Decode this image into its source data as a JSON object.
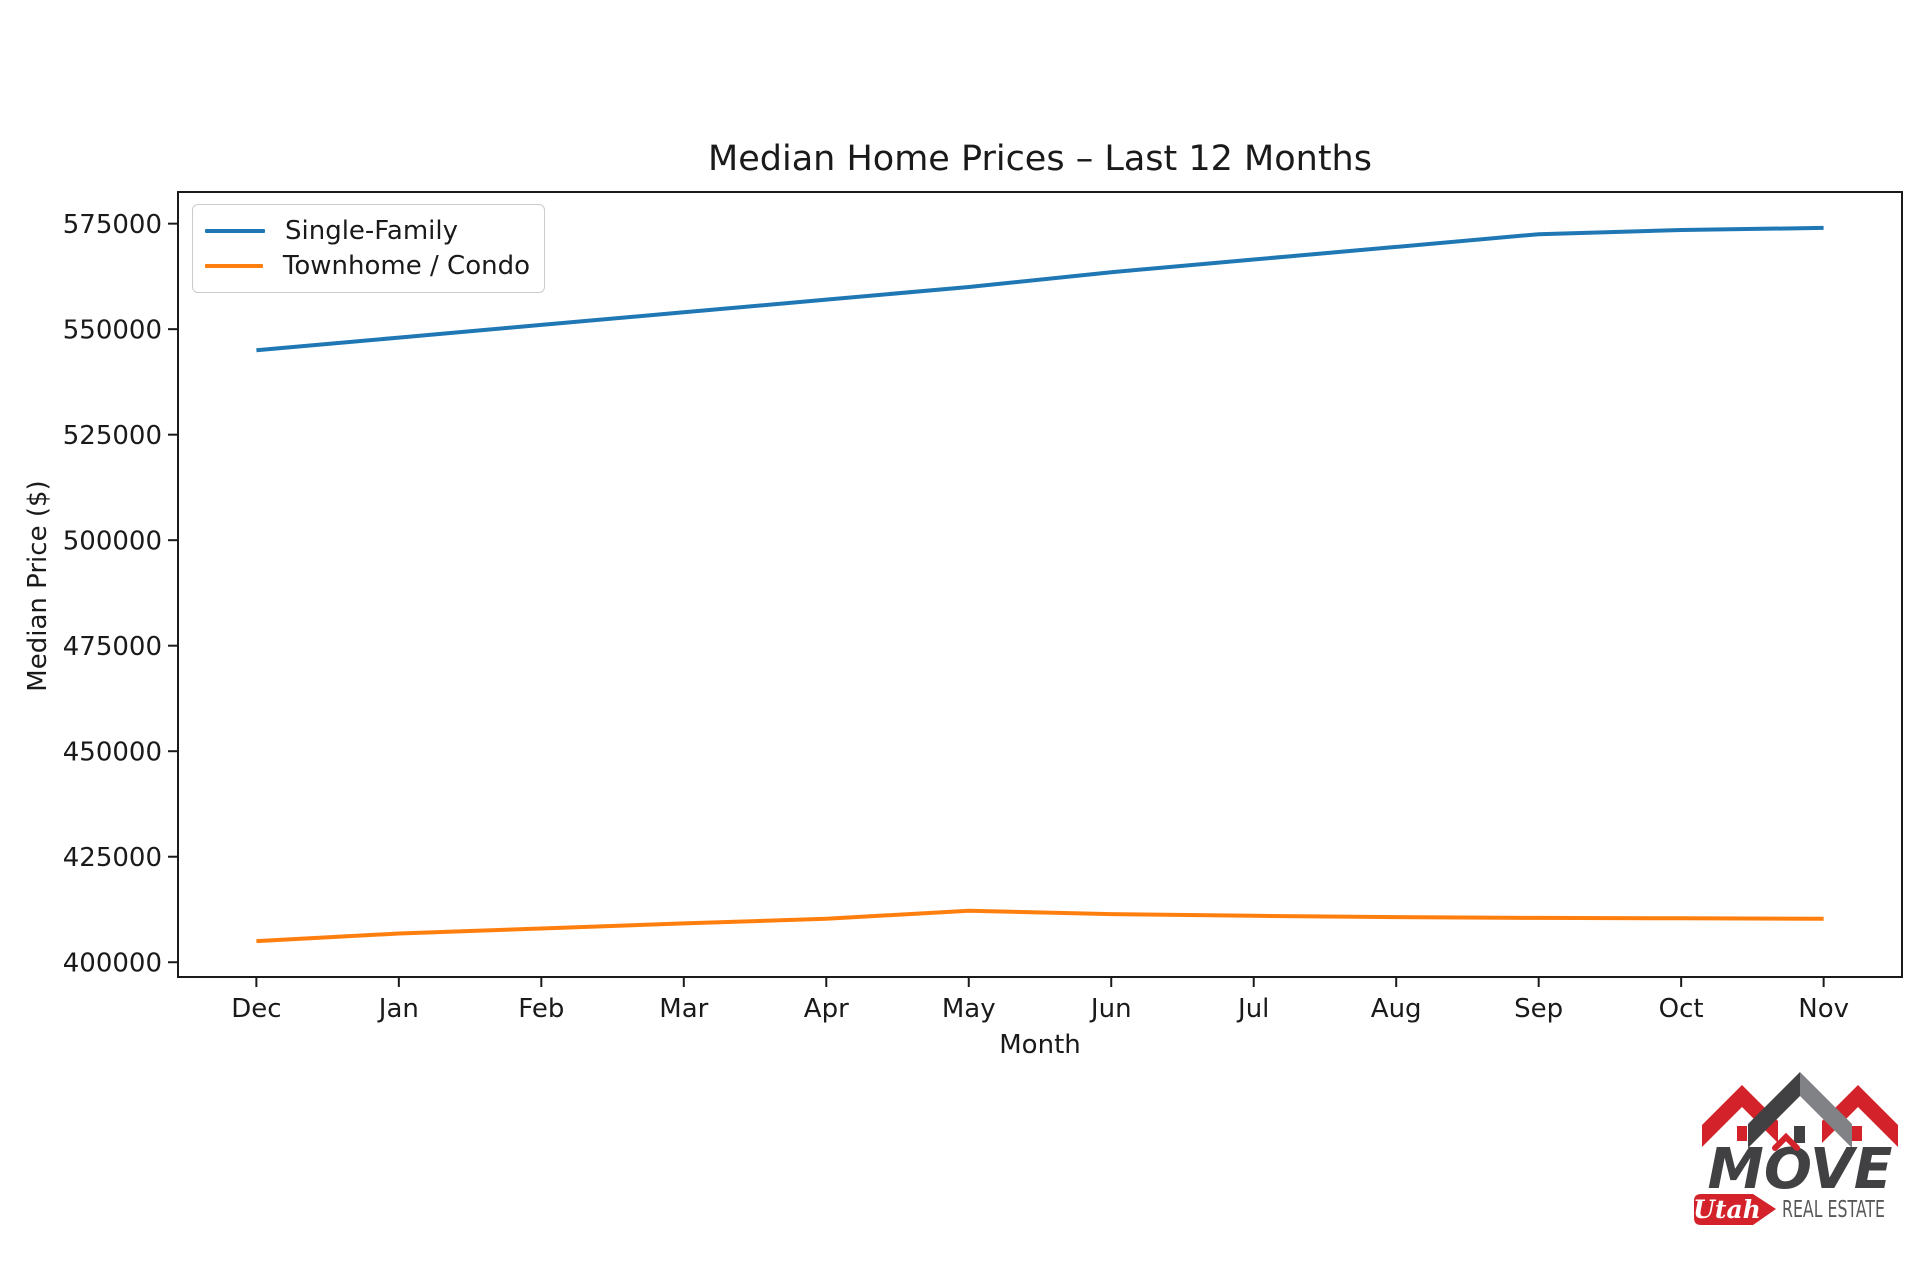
{
  "chart_data": {
    "type": "line",
    "title": "Median Home Prices – Last 12 Months",
    "xlabel": "Month",
    "ylabel": "Median Price ($)",
    "categories": [
      "Dec",
      "Jan",
      "Feb",
      "Mar",
      "Apr",
      "May",
      "Jun",
      "Jul",
      "Aug",
      "Sep",
      "Oct",
      "Nov"
    ],
    "series": [
      {
        "name": "Single-Family",
        "color": "#1f77b4",
        "values": [
          545000,
          548000,
          551000,
          554000,
          557000,
          560000,
          563500,
          566500,
          569500,
          572500,
          573500,
          574000
        ]
      },
      {
        "name": "Townhome / Condo",
        "color": "#ff7f0e",
        "values": [
          405000,
          406800,
          408000,
          409200,
          410300,
          412200,
          411400,
          411000,
          410700,
          410500,
          410400,
          410300
        ]
      }
    ],
    "yticks": [
      400000,
      425000,
      450000,
      475000,
      500000,
      525000,
      550000,
      575000
    ],
    "ylim": [
      396500,
      582500
    ],
    "grid": false,
    "legend_position": "upper left",
    "axis_color": "#1a1a1a"
  },
  "logo": {
    "move": "MOVE",
    "utah": "Utah",
    "real_estate": "REAL ESTATE",
    "colors": {
      "red": "#d3222a",
      "charcoal": "#414042",
      "gray": "#818286",
      "text_gray": "#58595b"
    }
  }
}
